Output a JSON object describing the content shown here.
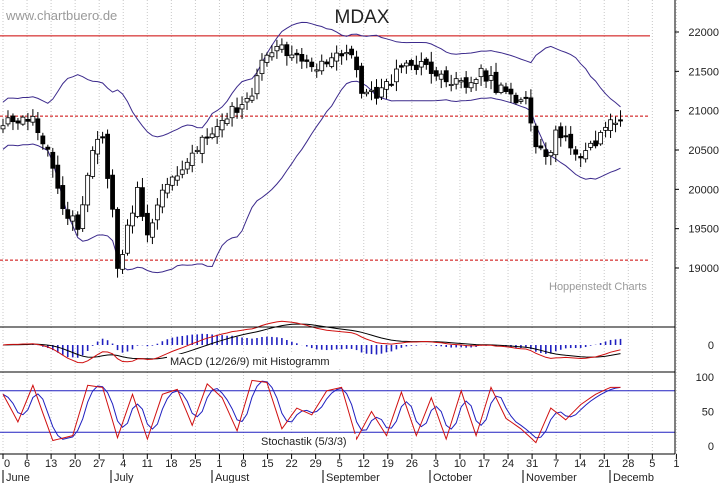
{
  "chart_data": {
    "type": "candlestick",
    "title": "MDAX",
    "watermark": "www.chartbuero.de",
    "source_label": "Hoppenstedt Charts",
    "colors": {
      "up_fill": "#ffffff",
      "down_fill": "#000000",
      "candle_edge": "#000000",
      "bollinger": "#3c2a8c",
      "reference_line": "#cc0000",
      "macd_line": "#000000",
      "macd_signal": "#d01010",
      "macd_histogram": "#2020c0",
      "stoch_k": "#d01010",
      "stoch_d": "#2020c0",
      "stoch_level": "#2020c0"
    },
    "price_panel": {
      "ylim": [
        18500,
        22250
      ],
      "yticks": [
        "22000",
        "21500",
        "21000",
        "20500",
        "20000",
        "19500",
        "19000"
      ],
      "reference_levels": [
        21950,
        20930,
        19100
      ],
      "grid": true
    },
    "x_axis": {
      "day_ticks": [
        "0",
        "6",
        "13",
        "20",
        "27",
        "4",
        "11",
        "18",
        "25",
        "1",
        "8",
        "15",
        "22",
        "29",
        "5",
        "12",
        "19",
        "26",
        "3",
        "10",
        "17",
        "24",
        "31",
        "7",
        "14",
        "21",
        "28",
        "5",
        "1"
      ],
      "months": [
        "June",
        "July",
        "August",
        "September",
        "October",
        "November",
        "Decemb"
      ]
    },
    "anchors": [
      [
        0,
        20850
      ],
      [
        6,
        20900
      ],
      [
        9,
        20500
      ],
      [
        12,
        19800
      ],
      [
        15,
        19500
      ],
      [
        18,
        20500
      ],
      [
        20,
        20700
      ],
      [
        22,
        19700
      ],
      [
        23,
        19000
      ],
      [
        25,
        19500
      ],
      [
        27,
        20000
      ],
      [
        29,
        19400
      ],
      [
        30,
        19600
      ],
      [
        32,
        19950
      ],
      [
        35,
        20200
      ],
      [
        38,
        20500
      ],
      [
        41,
        20700
      ],
      [
        44,
        20900
      ],
      [
        47,
        21050
      ],
      [
        50,
        21200
      ],
      [
        52,
        21600
      ],
      [
        55,
        21800
      ],
      [
        58,
        21750
      ],
      [
        61,
        21650
      ],
      [
        64,
        21550
      ],
      [
        67,
        21700
      ],
      [
        70,
        21750
      ],
      [
        72,
        21250
      ],
      [
        75,
        21150
      ],
      [
        78,
        21400
      ],
      [
        81,
        21550
      ],
      [
        84,
        21600
      ],
      [
        87,
        21500
      ],
      [
        90,
        21400
      ],
      [
        93,
        21350
      ],
      [
        96,
        21500
      ],
      [
        99,
        21300
      ],
      [
        102,
        21200
      ],
      [
        105,
        21100
      ],
      [
        107,
        20600
      ],
      [
        109,
        20350
      ],
      [
        111,
        20700
      ],
      [
        114,
        20550
      ],
      [
        116,
        20450
      ],
      [
        118,
        20550
      ],
      [
        121,
        20750
      ],
      [
        123,
        20880
      ]
    ],
    "macd": {
      "label": "MACD (12/26/9) mit Histogramm",
      "yticks": [
        "0"
      ]
    },
    "stochastic": {
      "label": "Stochastik (5/3/3)",
      "yticks": [
        "100",
        "50",
        "0"
      ],
      "levels": [
        80,
        20
      ],
      "k_phases": [
        {
          "x0": 0,
          "v": 75
        },
        {
          "x0": 3,
          "v": 35
        },
        {
          "x0": 6,
          "v": 88
        },
        {
          "x0": 10,
          "v": 8
        },
        {
          "x0": 14,
          "v": 15
        },
        {
          "x0": 17,
          "v": 88
        },
        {
          "x0": 20,
          "v": 85
        },
        {
          "x0": 23,
          "v": 12
        },
        {
          "x0": 26,
          "v": 75
        },
        {
          "x0": 29,
          "v": 10
        },
        {
          "x0": 32,
          "v": 75
        },
        {
          "x0": 35,
          "v": 82
        },
        {
          "x0": 38,
          "v": 30
        },
        {
          "x0": 41,
          "v": 90
        },
        {
          "x0": 44,
          "v": 70
        },
        {
          "x0": 47,
          "v": 22
        },
        {
          "x0": 50,
          "v": 95
        },
        {
          "x0": 53,
          "v": 92
        },
        {
          "x0": 56,
          "v": 25
        },
        {
          "x0": 59,
          "v": 55
        },
        {
          "x0": 62,
          "v": 45
        },
        {
          "x0": 65,
          "v": 80
        },
        {
          "x0": 68,
          "v": 85
        },
        {
          "x0": 71,
          "v": 10
        },
        {
          "x0": 74,
          "v": 50
        },
        {
          "x0": 77,
          "v": 15
        },
        {
          "x0": 80,
          "v": 78
        },
        {
          "x0": 83,
          "v": 15
        },
        {
          "x0": 86,
          "v": 70
        },
        {
          "x0": 89,
          "v": 10
        },
        {
          "x0": 92,
          "v": 80
        },
        {
          "x0": 95,
          "v": 15
        },
        {
          "x0": 98,
          "v": 85
        },
        {
          "x0": 101,
          "v": 40
        },
        {
          "x0": 104,
          "v": 25
        },
        {
          "x0": 107,
          "v": 5
        },
        {
          "x0": 110,
          "v": 55
        },
        {
          "x0": 113,
          "v": 38
        },
        {
          "x0": 116,
          "v": 60
        },
        {
          "x0": 119,
          "v": 75
        },
        {
          "x0": 122,
          "v": 85
        },
        {
          "x0": 124,
          "v": 85
        }
      ]
    }
  }
}
